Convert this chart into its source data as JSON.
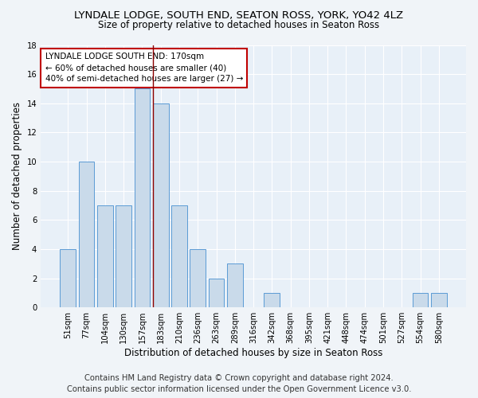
{
  "title": "LYNDALE LODGE, SOUTH END, SEATON ROSS, YORK, YO42 4LZ",
  "subtitle": "Size of property relative to detached houses in Seaton Ross",
  "xlabel": "Distribution of detached houses by size in Seaton Ross",
  "ylabel": "Number of detached properties",
  "categories": [
    "51sqm",
    "77sqm",
    "104sqm",
    "130sqm",
    "157sqm",
    "183sqm",
    "210sqm",
    "236sqm",
    "263sqm",
    "289sqm",
    "316sqm",
    "342sqm",
    "368sqm",
    "395sqm",
    "421sqm",
    "448sqm",
    "474sqm",
    "501sqm",
    "527sqm",
    "554sqm",
    "580sqm"
  ],
  "values": [
    4,
    10,
    7,
    7,
    15,
    14,
    7,
    4,
    2,
    3,
    0,
    1,
    0,
    0,
    0,
    0,
    0,
    0,
    0,
    1,
    1
  ],
  "bar_color": "#c9daea",
  "bar_edge_color": "#5b9bd5",
  "vline_color": "#8b0000",
  "vline_x_idx": 4.57,
  "annotation_title": "LYNDALE LODGE SOUTH END: 170sqm",
  "annotation_line1": "← 60% of detached houses are smaller (40)",
  "annotation_line2": "40% of semi-detached houses are larger (27) →",
  "annotation_box_color": "#ffffff",
  "annotation_box_edge": "#c00000",
  "ylim": [
    0,
    18
  ],
  "yticks": [
    0,
    2,
    4,
    6,
    8,
    10,
    12,
    14,
    16,
    18
  ],
  "footer1": "Contains HM Land Registry data © Crown copyright and database right 2024.",
  "footer2": "Contains public sector information licensed under the Open Government Licence v3.0.",
  "bg_color": "#f0f4f8",
  "plot_bg_color": "#e8f0f8",
  "grid_color": "#ffffff",
  "title_fontsize": 9.5,
  "subtitle_fontsize": 8.5,
  "axis_label_fontsize": 8.5,
  "tick_fontsize": 7.2,
  "footer_fontsize": 7.2,
  "ann_fontsize": 7.5
}
